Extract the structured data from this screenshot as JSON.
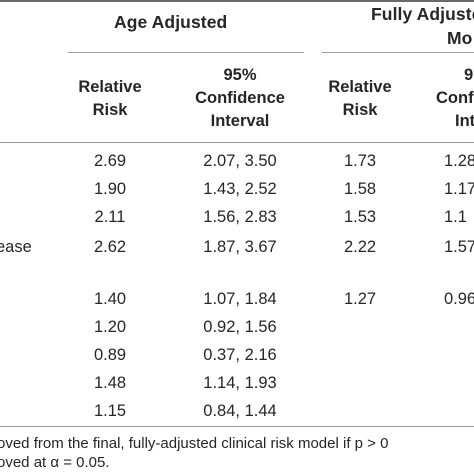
{
  "table": {
    "groups": {
      "age_adjusted": "Age Adjusted",
      "fully_adjusted_line1": "Fully Adjuste",
      "fully_adjusted_line2": "Mo"
    },
    "columns": {
      "rr1": {
        "line1": "Relative",
        "line2": "Risk"
      },
      "ci1": {
        "line1": "95%",
        "line2": "Confidence",
        "line3": "Interval"
      },
      "rr2": {
        "line1": "Relative",
        "line2": "Risk"
      },
      "ci2": {
        "line1": "9",
        "line2": "Conf",
        "line3": "Int"
      }
    },
    "rows": [
      {
        "label": "",
        "rr1": "2.69",
        "ci1": "2.07, 3.50",
        "rr2": "1.73",
        "ci2": "1.28"
      },
      {
        "label": "",
        "rr1": "1.90",
        "ci1": "1.43, 2.52",
        "rr2": "1.58",
        "ci2": "1.17"
      },
      {
        "label": "",
        "rr1": "2.11",
        "ci1": "1.56, 2.83",
        "rr2": "1.53",
        "ci2": "1.1"
      },
      {
        "label": "ease",
        "rr1": "2.62",
        "ci1": "1.87, 3.67",
        "rr2": "2.22",
        "ci2": "1.57"
      },
      {
        "label": "",
        "rr1": "1.40",
        "ci1": "1.07, 1.84",
        "rr2": "1.27",
        "ci2": "0.96"
      },
      {
        "label": "",
        "rr1": "1.20",
        "ci1": "0.92, 1.56",
        "rr2": "",
        "ci2": ""
      },
      {
        "label": "",
        "rr1": "0.89",
        "ci1": "0.37, 2.16",
        "rr2": "",
        "ci2": ""
      },
      {
        "label": "",
        "rr1": "1.48",
        "ci1": "1.14, 1.93",
        "rr2": "",
        "ci2": ""
      },
      {
        "label": "",
        "rr1": "1.15",
        "ci1": "0.84, 1.44",
        "rr2": "",
        "ci2": ""
      }
    ]
  },
  "footnotes": {
    "line1": "oved from the final, fully-adjusted clinical risk model if p > 0",
    "line2": "oved at α = 0.05."
  }
}
